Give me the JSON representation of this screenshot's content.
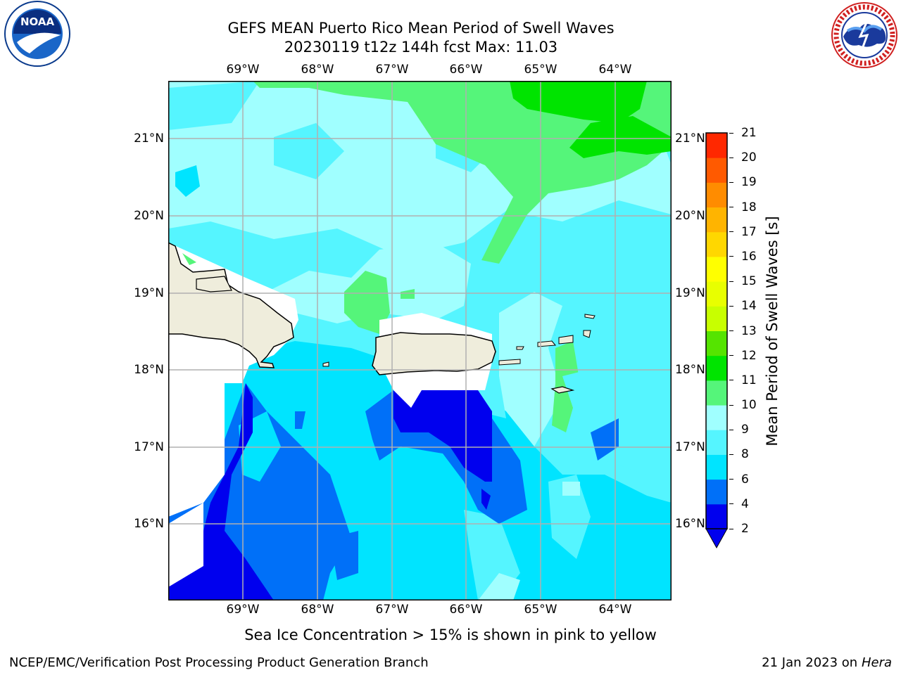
{
  "title": {
    "line1": "GEFS MEAN Puerto Rico Mean Period of Swell Waves",
    "line2": "20230119 t12z 144h fcst   Max: 11.03"
  },
  "axes": {
    "lon_labels": [
      "69°W",
      "68°W",
      "67°W",
      "66°W",
      "65°W",
      "64°W"
    ],
    "lat_labels": [
      "21°N",
      "20°N",
      "19°N",
      "18°N",
      "17°N",
      "16°N"
    ]
  },
  "colorbar": {
    "title": "Mean Period of Swell Waves [s]",
    "levels": [
      "2",
      "4",
      "6",
      "8",
      "9",
      "10",
      "11",
      "12",
      "13",
      "14",
      "15",
      "16",
      "17",
      "18",
      "19",
      "20",
      "21"
    ],
    "colors": [
      "#0000ee",
      "#0070f8",
      "#00e4ff",
      "#55f5ff",
      "#a0ffff",
      "#55f57a",
      "#00e400",
      "#55e400",
      "#c8ff00",
      "#e8ff00",
      "#ffff00",
      "#ffd700",
      "#ffb400",
      "#ff8c00",
      "#ff5a00",
      "#ff2800",
      "#ff0000"
    ]
  },
  "logos": {
    "noaa": {
      "text": "NOAA"
    },
    "nws": {
      "text": "NATIONAL WEATHER SERVICE"
    }
  },
  "note": "Sea Ice Concentration > 15% is shown in pink to yellow",
  "footer": {
    "left": "NCEP/EMC/Verification Post Processing Product Generation Branch",
    "date": "21 Jan 2023 on ",
    "machine": "Hera"
  }
}
